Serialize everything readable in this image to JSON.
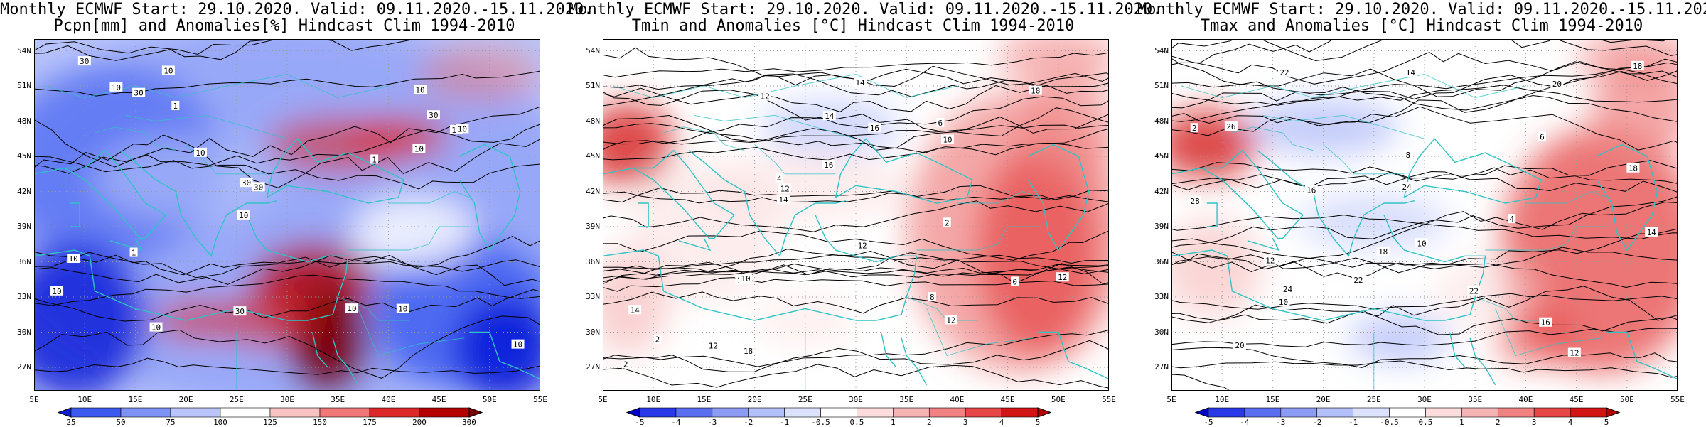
{
  "panels": [
    {
      "title_line1": "Monthly ECMWF Start: 29.10.2020. Valid: 09.11.2020.-15.11.2020.",
      "title_line2": "Pcpn[mm] and Anomalies[%] Hindcast Clim 1994-2010",
      "palette": "precip",
      "colorbar_ticks": [
        "25",
        "50",
        "75",
        "100",
        "125",
        "150",
        "175",
        "200",
        "300"
      ],
      "colorbar_colors": [
        "#0a1ed8",
        "#3c5af0",
        "#7d92f5",
        "#b9c4fa",
        "#ffffff",
        "#fac3c3",
        "#f07878",
        "#dc2828",
        "#b40000",
        "#780000"
      ],
      "contour_labels": [
        "10",
        "10",
        "10",
        "10",
        "30",
        "10",
        "10",
        "30",
        "10",
        "10",
        "30",
        "30",
        "10",
        "10",
        "30",
        "10",
        "10",
        "1",
        "1",
        "10",
        "30",
        "10",
        "1"
      ]
    },
    {
      "title_line1": "Monthly ECMWF Start: 29.10.2020. Valid: 09.11.2020.-15.11.2020.",
      "title_line2": "Tmin and Anomalies [°C] Hindcast Clim 1994-2010",
      "palette": "temp",
      "colorbar_ticks": [
        "-5",
        "-4",
        "-3",
        "-2",
        "-1",
        "-0.5",
        "0.5",
        "1",
        "2",
        "3",
        "4",
        "5"
      ],
      "colorbar_colors": [
        "#0000c8",
        "#2838e6",
        "#5a6ef0",
        "#8c9cf5",
        "#b4c0fa",
        "#dce2fc",
        "#ffffff",
        "#fcdcdc",
        "#f5b4b4",
        "#f08282",
        "#e64646",
        "#d21414",
        "#b40000"
      ],
      "contour_labels": [
        "2",
        "0",
        "2",
        "8",
        "12",
        "12",
        "14",
        "12",
        "16",
        "18",
        "14",
        "12",
        "10",
        "16",
        "18",
        "12",
        "12",
        "6",
        "14",
        "12",
        "10",
        "2",
        "4",
        "14"
      ]
    },
    {
      "title_line1": "Monthly ECMWF Start: 29.10.2020. Valid: 09.11.2020.-15.11.2020.",
      "title_line2": "Tmax and Anomalies [°C] Hindcast Clim 1994-2010",
      "palette": "temp",
      "colorbar_ticks": [
        "-5",
        "-4",
        "-3",
        "-2",
        "-1",
        "-0.5",
        "0.5",
        "1",
        "2",
        "3",
        "4",
        "5"
      ],
      "colorbar_colors": [
        "#0000c8",
        "#2838e6",
        "#5a6ef0",
        "#8c9cf5",
        "#b4c0fa",
        "#dce2fc",
        "#ffffff",
        "#fcdcdc",
        "#f5b4b4",
        "#f08282",
        "#e64646",
        "#d21414",
        "#b40000"
      ],
      "contour_labels": [
        "2",
        "4",
        "6",
        "8",
        "10",
        "12",
        "14",
        "16",
        "18",
        "20",
        "22",
        "24",
        "26",
        "28",
        "18",
        "14",
        "12",
        "10",
        "22",
        "20",
        "24",
        "22",
        "18",
        "16"
      ]
    }
  ],
  "axes": {
    "lat_labels": [
      "54N",
      "51N",
      "48N",
      "45N",
      "42N",
      "39N",
      "36N",
      "33N",
      "30N",
      "27N"
    ],
    "lon_labels": [
      "5E",
      "10E",
      "15E",
      "20E",
      "25E",
      "30E",
      "35E",
      "40E",
      "45E",
      "50E",
      "55E"
    ],
    "lon_range": [
      5,
      55
    ],
    "lat_range": [
      25,
      55
    ]
  },
  "colors": {
    "coastline": "#2ec4c4",
    "contour": "#000000",
    "grid": "#9a9a9a"
  }
}
